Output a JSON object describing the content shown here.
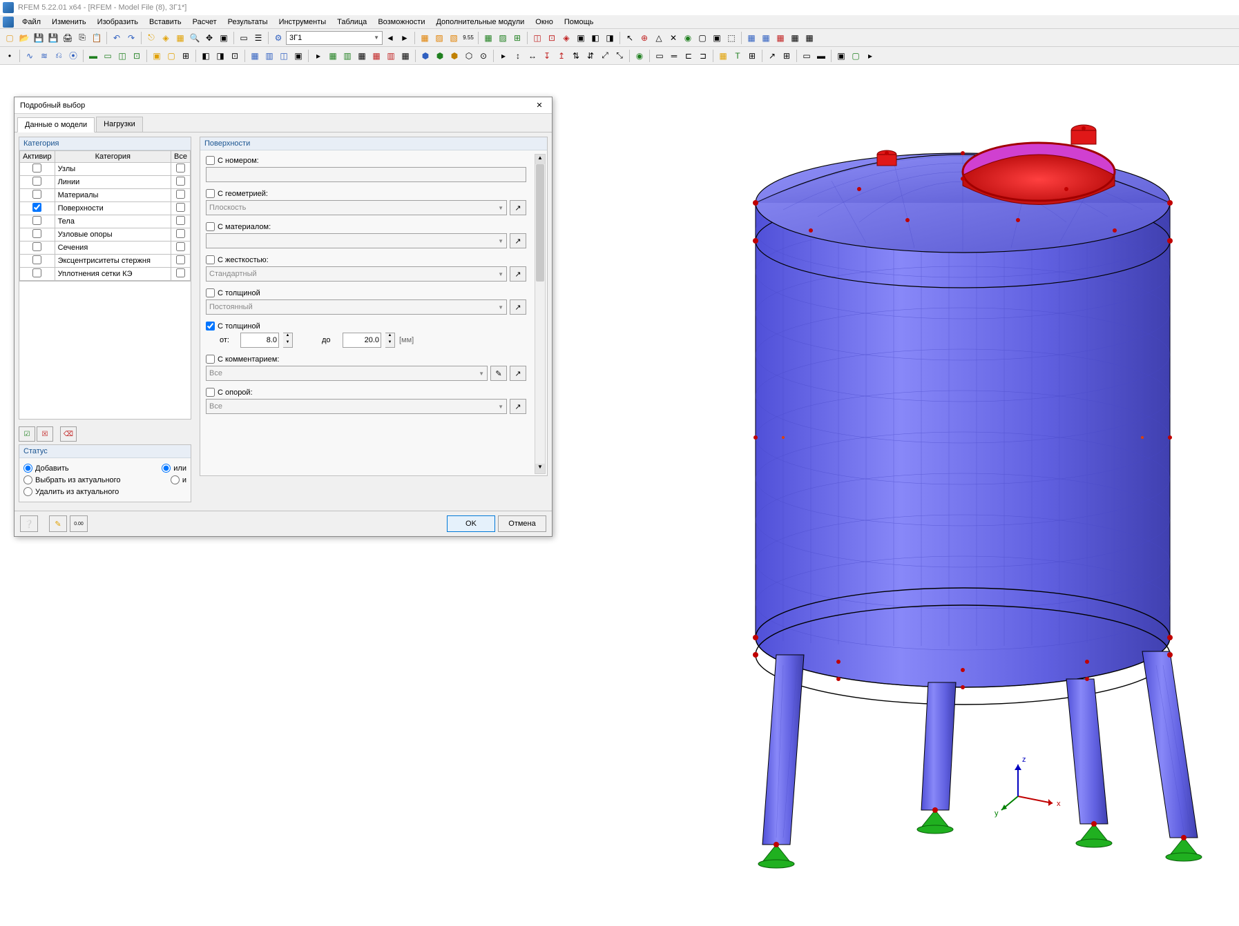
{
  "app": {
    "title": "RFEM 5.22.01 x64 - [RFEM - Model File (8), 3Г1*]"
  },
  "menu": {
    "items": [
      "Файл",
      "Изменить",
      "Изобразить",
      "Вставить",
      "Расчет",
      "Результаты",
      "Инструменты",
      "Таблица",
      "Возможности",
      "Дополнительные модули",
      "Окно",
      "Помощь"
    ]
  },
  "toolbar1_combo": "3Г1",
  "dialog": {
    "title": "Подробный выбор",
    "tabs": {
      "t1": "Данные о модели",
      "t2": "Нагрузки"
    },
    "category": {
      "title": "Категория",
      "headers": {
        "h1": "Активир",
        "h2": "Категория",
        "h3": "Все"
      },
      "rows": [
        {
          "label": "Узлы",
          "active": false,
          "all": false
        },
        {
          "label": "Линии",
          "active": false,
          "all": false
        },
        {
          "label": "Материалы",
          "active": false,
          "all": false
        },
        {
          "label": "Поверхности",
          "active": true,
          "all": false
        },
        {
          "label": "Тела",
          "active": false,
          "all": false
        },
        {
          "label": "Узловые опоры",
          "active": false,
          "all": false
        },
        {
          "label": "Сечения",
          "active": false,
          "all": false
        },
        {
          "label": "Эксцентриситеты стержня",
          "active": false,
          "all": false
        },
        {
          "label": "Уплотнения сетки КЭ",
          "active": false,
          "all": false
        }
      ]
    },
    "status": {
      "title": "Статус",
      "r1": "Добавить",
      "r1b": "или",
      "r2": "Выбрать из актуального",
      "r2b": "и",
      "r3": "Удалить из актуального"
    },
    "surfaces": {
      "title": "Поверхности",
      "f_number": "С номером:",
      "f_geom": "С геометрией:",
      "f_geom_val": "Плоскость",
      "f_mat": "С материалом:",
      "f_stiff": "С жесткостью:",
      "f_stiff_val": "Стандартный",
      "f_thick": "С толщиной",
      "f_thick_val": "Постоянный",
      "f_thick2": "С толщиной",
      "range_from": "от:",
      "range_from_val": "8.0",
      "range_to": "до",
      "range_to_val": "20.0",
      "range_unit": "[мм]",
      "f_comment": "С комментарием:",
      "f_comment_val": "Все",
      "f_support": "С опорой:",
      "f_support_val": "Все"
    },
    "buttons": {
      "ok": "OK",
      "cancel": "Отмена"
    }
  },
  "model": {
    "tank_body_color": "#6a6af0",
    "tank_mesh_color": "#4848c8",
    "tank_edge_color": "#000000",
    "flange_color": "#e01818",
    "opening_color": "#d040d0",
    "node_color": "#c00000",
    "support_color": "#20b020",
    "background": "#ffffff",
    "axis": {
      "x": "x",
      "y": "y",
      "z": "z"
    }
  }
}
